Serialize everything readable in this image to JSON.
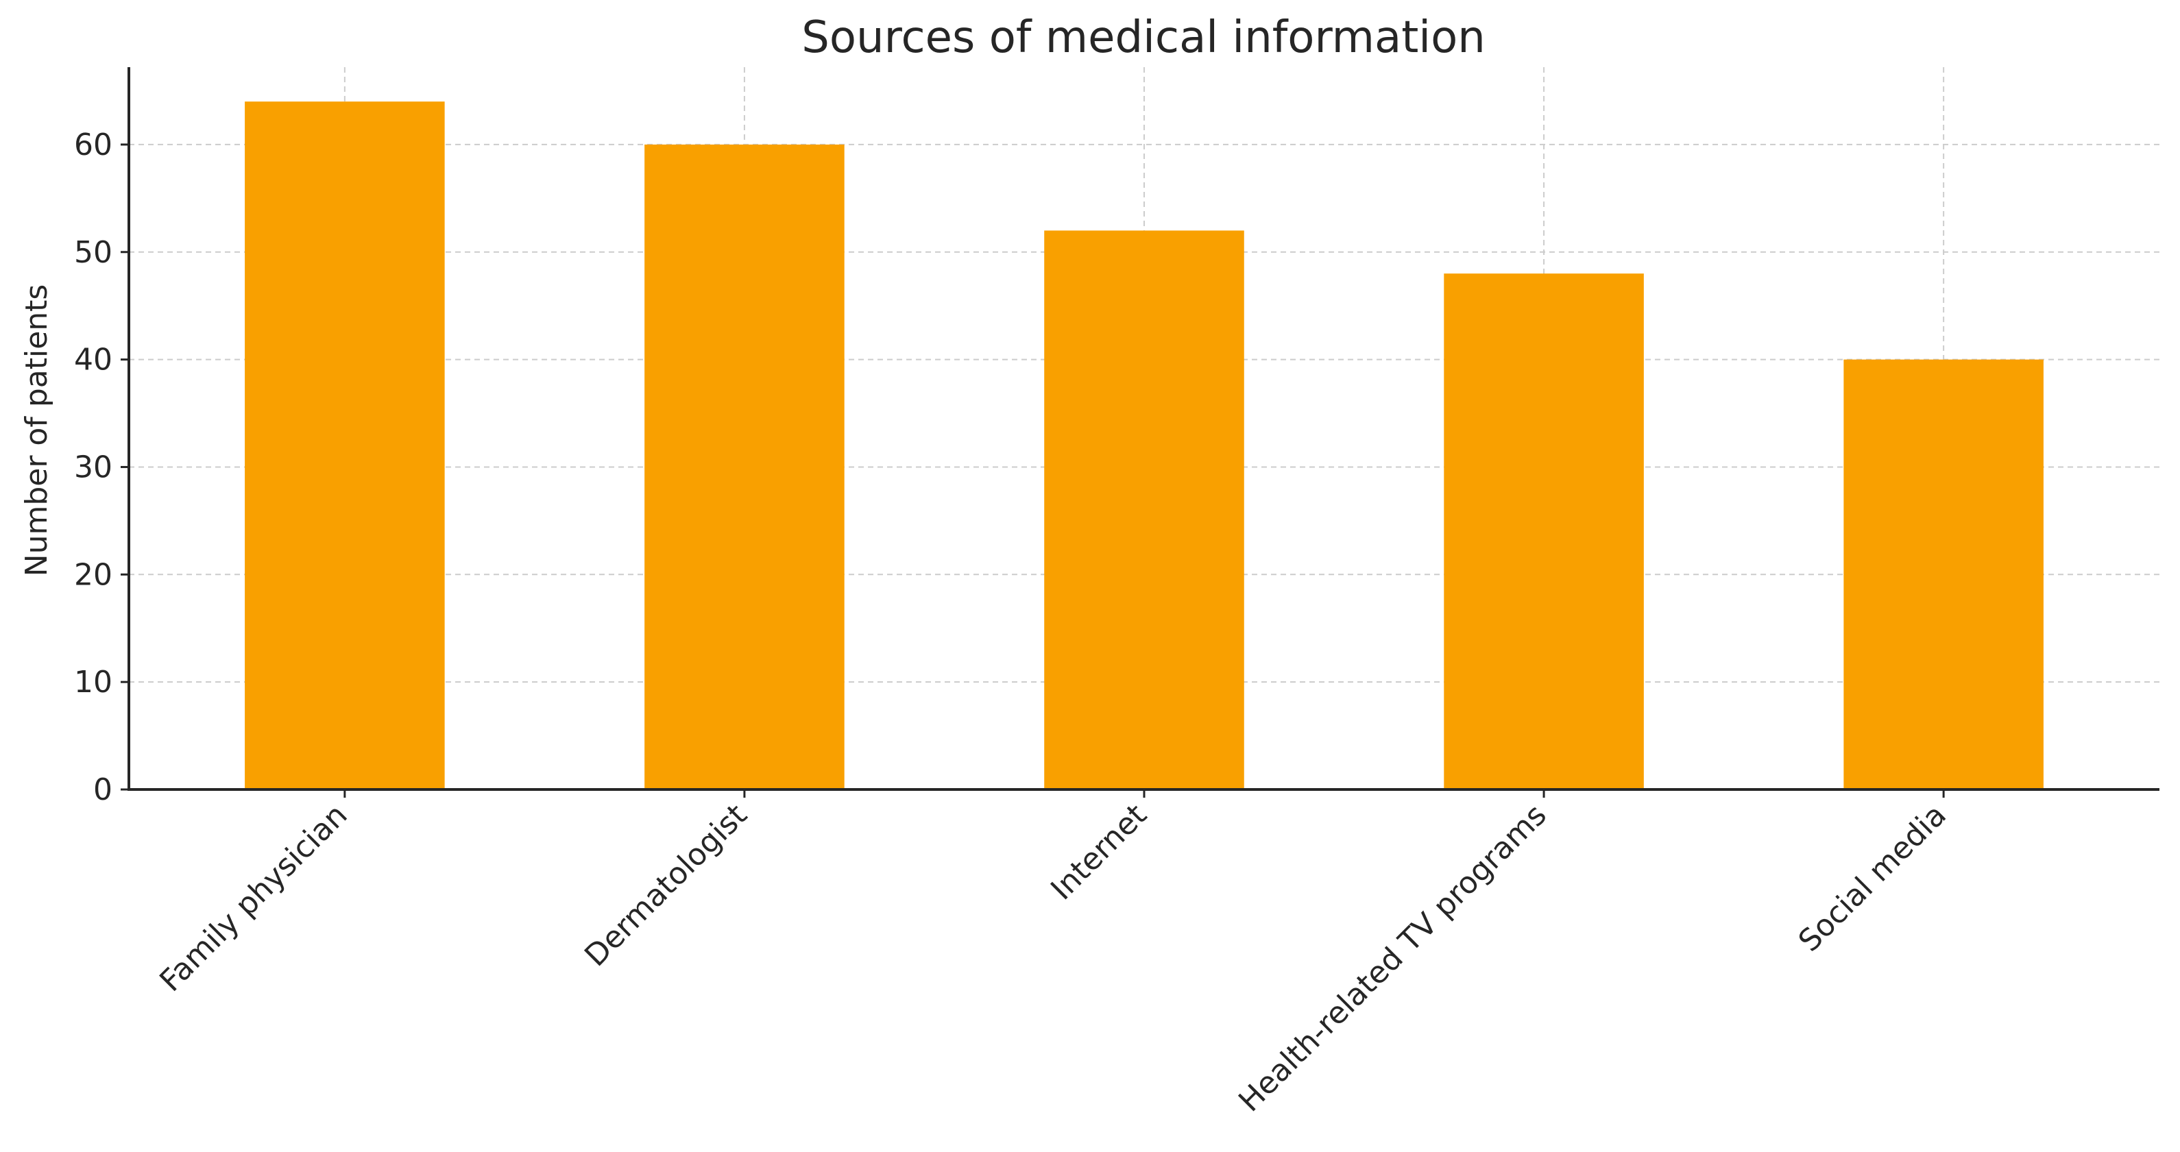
{
  "chart_data": {
    "type": "bar",
    "title": "Sources of medical information",
    "xlabel": "",
    "ylabel": "Number of patients",
    "categories": [
      "Family physician",
      "Dermatologist",
      "Internet",
      "Health-related TV programs",
      "Social media"
    ],
    "values": [
      64,
      60,
      52,
      48,
      40
    ],
    "ylim": [
      0,
      67.2
    ],
    "yticks": [
      0,
      10,
      20,
      30,
      40,
      50,
      60
    ],
    "grid": true,
    "bar_color": "#f9a000",
    "axis_color": "#262626",
    "grid_color": "#cccccc"
  }
}
